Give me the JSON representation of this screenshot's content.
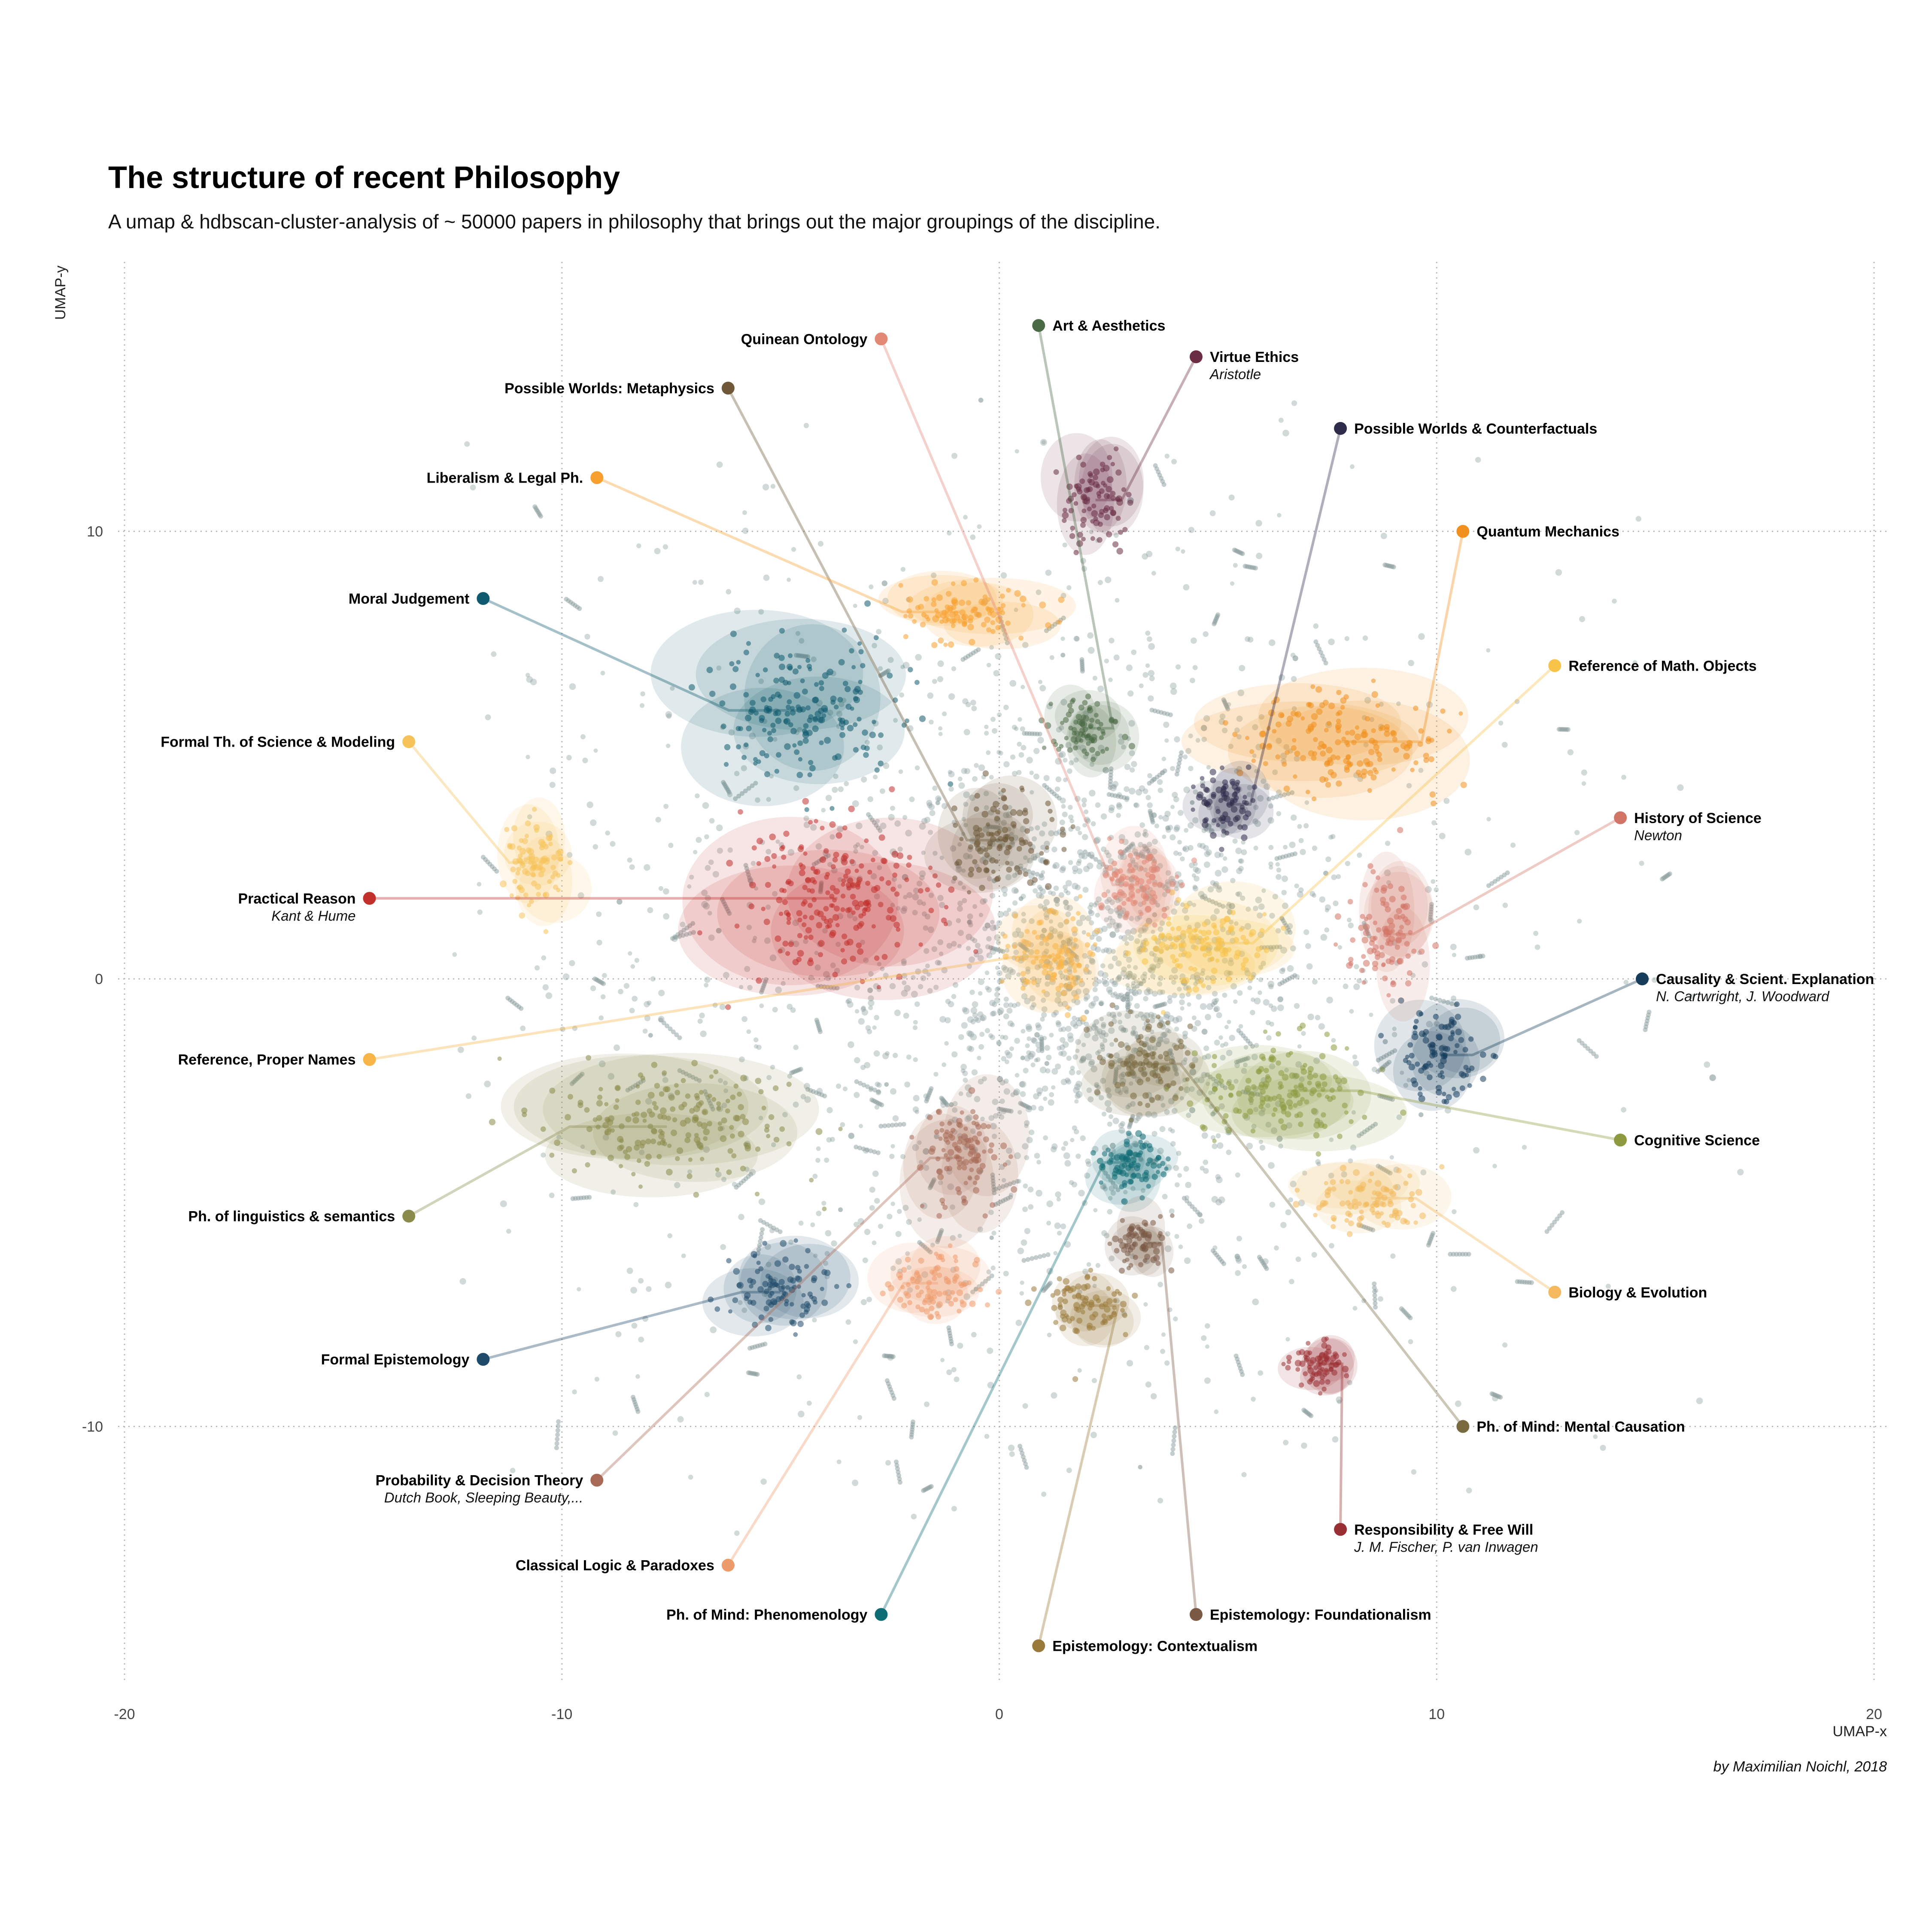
{
  "chart_data": {
    "type": "scatter",
    "title": "The structure of recent Philosophy",
    "subtitle": "A umap & hdbscan-cluster-analysis of ~ 50000 papers in philosophy that brings out the major groupings of the discipline.",
    "xlabel": "UMAP-x",
    "ylabel": "UMAP-y",
    "caption": "by Maximilian Noichl, 2018",
    "xlim": [
      -20,
      20
    ],
    "ylim": [
      -16,
      16.5
    ],
    "xticks": [
      -20,
      -10,
      0,
      10,
      20
    ],
    "yticks": [
      -10,
      0,
      10
    ],
    "grid": true,
    "noise_color": "#8a9c9c",
    "clusters": [
      {
        "name": "Moral Judgement",
        "color": "#0f5a6e",
        "x": -4.5,
        "y": 6.0,
        "rx": 2.8,
        "ry": 1.9,
        "label_x": -11.8,
        "label_y": 8.5,
        "anchor": "end"
      },
      {
        "name": "Formal Th. of Science & Modeling",
        "color": "#f5c35a",
        "x": -10.6,
        "y": 2.6,
        "rx": 1.0,
        "ry": 1.3,
        "label_x": -13.5,
        "label_y": 5.3,
        "anchor": "end"
      },
      {
        "name": "Practical Reason",
        "sub": "Kant & Hume",
        "color": "#c1302b",
        "x": -3.7,
        "y": 1.8,
        "rx": 2.9,
        "ry": 2.3,
        "label_x": -14.4,
        "label_y": 1.8,
        "anchor": "end"
      },
      {
        "name": "Reference, Proper Names",
        "color": "#f7b548",
        "x": 1.2,
        "y": 0.5,
        "rx": 1.3,
        "ry": 1.3,
        "label_x": -14.4,
        "label_y": -1.8,
        "anchor": "end"
      },
      {
        "name": "Ph. of linguistics & semantics",
        "color": "#8a8b4b",
        "x": -7.6,
        "y": -3.3,
        "rx": 3.7,
        "ry": 1.6,
        "label_x": -13.5,
        "label_y": -5.3,
        "anchor": "end"
      },
      {
        "name": "Formal Epistemology",
        "color": "#1f4a69",
        "x": -5.0,
        "y": -7.0,
        "rx": 1.5,
        "ry": 1.1,
        "label_x": -11.8,
        "label_y": -8.5,
        "anchor": "end"
      },
      {
        "name": "Probability & Decision Theory",
        "sub": "Dutch Book, Sleeping Beauty,...",
        "color": "#a86a56",
        "x": -0.8,
        "y": -4.0,
        "rx": 1.3,
        "ry": 1.6,
        "label_x": -9.2,
        "label_y": -11.2,
        "anchor": "end"
      },
      {
        "name": "Classical Logic & Paradoxes",
        "color": "#ee9b6c",
        "x": -1.4,
        "y": -6.8,
        "rx": 1.3,
        "ry": 0.9,
        "label_x": -6.2,
        "label_y": -13.1,
        "anchor": "end"
      },
      {
        "name": "Ph. of Mind: Phenomenology",
        "color": "#0e6c74",
        "x": 3.0,
        "y": -4.1,
        "rx": 1.0,
        "ry": 0.9,
        "label_x": -2.7,
        "label_y": -14.2,
        "anchor": "end"
      },
      {
        "name": "Epistemology: Contextualism",
        "color": "#9a7a3a",
        "x": 2.0,
        "y": -7.3,
        "rx": 1.2,
        "ry": 0.9,
        "label_x": 0.9,
        "label_y": -14.9,
        "anchor": "start"
      },
      {
        "name": "Epistemology: Foundationalism",
        "color": "#7a5a45",
        "x": 3.3,
        "y": -5.9,
        "rx": 0.7,
        "ry": 0.8,
        "label_x": 4.5,
        "label_y": -14.2,
        "anchor": "start"
      },
      {
        "name": "Responsibility & Free Will",
        "sub": "J. M. Fischer, P. van Inwagen",
        "color": "#9a2f33",
        "x": 7.3,
        "y": -8.6,
        "rx": 0.9,
        "ry": 0.7,
        "label_x": 7.8,
        "label_y": -12.3,
        "anchor": "start"
      },
      {
        "name": "Ph. of Mind: Mental Causation",
        "color": "#7a6a40",
        "x": 3.3,
        "y": -1.9,
        "rx": 1.4,
        "ry": 1.1,
        "label_x": 10.6,
        "label_y": -10.0,
        "anchor": "start"
      },
      {
        "name": "Biology & Evolution",
        "color": "#f3b95c",
        "x": 8.5,
        "y": -4.9,
        "rx": 1.7,
        "ry": 0.9,
        "label_x": 12.7,
        "label_y": -7.0,
        "anchor": "start"
      },
      {
        "name": "Cognitive Science",
        "color": "#8d9a40",
        "x": 6.6,
        "y": -2.5,
        "rx": 2.7,
        "ry": 1.4,
        "label_x": 14.2,
        "label_y": -3.6,
        "anchor": "start"
      },
      {
        "name": "Causality & Scient. Explanation",
        "sub": "N. Cartwright, J. Woodward",
        "color": "#163e5c",
        "x": 10.1,
        "y": -1.7,
        "rx": 1.2,
        "ry": 1.3,
        "label_x": 14.7,
        "label_y": 0.0,
        "anchor": "start"
      },
      {
        "name": "History of Science",
        "sub": "Newton",
        "color": "#d17566",
        "x": 8.8,
        "y": 1.0,
        "rx": 1.1,
        "ry": 1.6,
        "label_x": 14.2,
        "label_y": 3.6,
        "anchor": "start"
      },
      {
        "name": "Reference of Math. Objects",
        "color": "#f7c349",
        "x": 4.6,
        "y": 0.8,
        "rx": 2.0,
        "ry": 1.2,
        "label_x": 12.7,
        "label_y": 7.0,
        "anchor": "start"
      },
      {
        "name": "Quantum Mechanics",
        "color": "#f0901e",
        "x": 7.8,
        "y": 5.3,
        "rx": 3.1,
        "ry": 1.5,
        "label_x": 10.6,
        "label_y": 10.0,
        "anchor": "start"
      },
      {
        "name": "Possible Worlds & Counterfactuals",
        "color": "#2f2b4a",
        "x": 5.2,
        "y": 3.9,
        "rx": 0.9,
        "ry": 0.9,
        "label_x": 7.8,
        "label_y": 12.3,
        "anchor": "start"
      },
      {
        "name": "Virtue Ethics",
        "sub": "Aristotle",
        "color": "#6a2d44",
        "x": 2.2,
        "y": 10.7,
        "rx": 1.0,
        "ry": 1.3,
        "label_x": 4.5,
        "label_y": 13.9,
        "anchor": "start"
      },
      {
        "name": "Art & Aesthetics",
        "color": "#4a6a46",
        "x": 2.0,
        "y": 5.6,
        "rx": 1.0,
        "ry": 0.9,
        "label_x": 0.9,
        "label_y": 14.6,
        "anchor": "start"
      },
      {
        "name": "Quinean Ontology",
        "color": "#e28976",
        "x": 3.2,
        "y": 2.1,
        "rx": 1.0,
        "ry": 1.2,
        "label_x": -2.7,
        "label_y": 14.3,
        "anchor": "end"
      },
      {
        "name": "Possible Worlds: Metaphysics",
        "color": "#6e5838",
        "x": 0.1,
        "y": 3.1,
        "rx": 1.4,
        "ry": 1.3,
        "label_x": -6.2,
        "label_y": 13.2,
        "anchor": "end"
      },
      {
        "name": "Liberalism & Legal Ph.",
        "color": "#f7a030",
        "x": -0.9,
        "y": 8.2,
        "rx": 2.2,
        "ry": 0.8,
        "label_x": -9.2,
        "label_y": 11.2,
        "anchor": "end"
      }
    ]
  }
}
